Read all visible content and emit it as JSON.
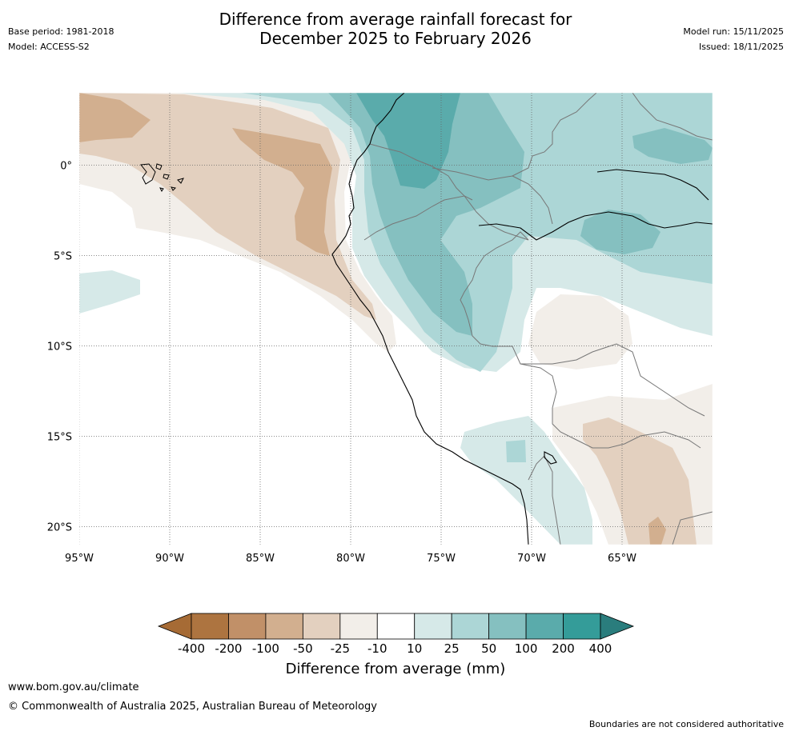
{
  "header": {
    "title_line1": "Difference from average rainfall forecast for",
    "title_line2": "December 2025 to February 2026",
    "base_period": "Base period: 1981-2018",
    "model": "Model: ACCESS-S2",
    "model_run": "Model run: 15/11/2025",
    "issued": "Issued: 18/11/2025"
  },
  "map": {
    "lat_labels": [
      "0°",
      "5°S",
      "10°S",
      "15°S",
      "20°S"
    ],
    "lon_labels": [
      "95°W",
      "90°W",
      "85°W",
      "80°W",
      "75°W",
      "70°W",
      "65°W"
    ],
    "lat_values": [
      0,
      -5,
      -10,
      -15,
      -20
    ],
    "lon_values": [
      -95,
      -90,
      -85,
      -80,
      -75,
      -70,
      -65
    ],
    "lon_range": [
      -95,
      -60
    ],
    "lat_range": [
      -21,
      4
    ]
  },
  "colorbar": {
    "title": "Difference from average (mm)",
    "ticks": [
      "-400",
      "-200",
      "-100",
      "-50",
      "-25",
      "-10",
      "10",
      "25",
      "50",
      "100",
      "200",
      "400"
    ],
    "colors": [
      "#a66b35",
      "#ad7440",
      "#c19068",
      "#d2af8f",
      "#e3d0bf",
      "#f2eee9",
      "#ffffff",
      "#d6e9e8",
      "#acd6d6",
      "#85c0c0",
      "#5aabab",
      "#349c99",
      "#2a7d7d"
    ]
  },
  "footer": {
    "website": "www.bom.gov.au/climate",
    "copyright": "© Commonwealth of Australia 2025, Australian Bureau of Meteorology",
    "disclaimer": "Boundaries are not considered authoritative"
  }
}
